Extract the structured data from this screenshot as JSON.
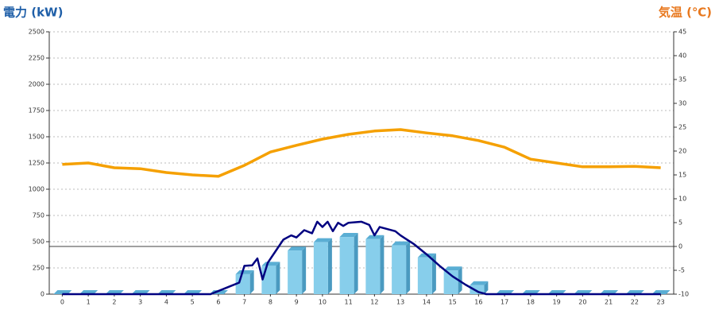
{
  "chart_data": {
    "type": "combo",
    "title_left": "電力 (kW)",
    "title_right": "気温 (℃)",
    "title_left_color": "#1f5fa8",
    "title_right_color": "#e8781e",
    "categories": [
      "0",
      "1",
      "2",
      "3",
      "4",
      "5",
      "6",
      "7",
      "8",
      "9",
      "10",
      "11",
      "12",
      "13",
      "14",
      "15",
      "16",
      "17",
      "18",
      "19",
      "20",
      "21",
      "22",
      "23"
    ],
    "ylim": [
      0,
      2500
    ],
    "yticks": [
      0,
      250,
      500,
      750,
      1000,
      1250,
      1500,
      1750,
      2000,
      2250,
      2500
    ],
    "y2lim": [
      -10,
      45
    ],
    "y2ticks": [
      -10,
      -5,
      0,
      5,
      10,
      15,
      20,
      25,
      30,
      35,
      40,
      45
    ],
    "xlim": [
      -0.5,
      23.5
    ],
    "grid": true,
    "series": [
      {
        "type": "bar",
        "color": "#87ceeb",
        "values": [
          0,
          0,
          0,
          0,
          0,
          0,
          0,
          190,
          270,
          415,
          495,
          545,
          525,
          465,
          350,
          225,
          85,
          0,
          0,
          0,
          0,
          0,
          0,
          0
        ]
      },
      {
        "type": "line",
        "color": "#000080",
        "x": [
          0,
          1,
          2,
          3,
          4,
          5,
          5.7,
          6,
          6.5,
          6.8,
          7,
          7.3,
          7.5,
          7.7,
          7.9,
          8.2,
          8.5,
          8.8,
          9,
          9.3,
          9.6,
          9.8,
          10,
          10.2,
          10.4,
          10.6,
          10.8,
          11,
          11.5,
          11.8,
          12,
          12.2,
          12.5,
          12.8,
          13,
          13.5,
          14,
          14.5,
          15,
          15.5,
          16,
          16.3,
          17,
          18,
          19,
          20,
          21,
          22,
          23
        ],
        "values": [
          0,
          0,
          0,
          0,
          0,
          0,
          0,
          30,
          80,
          110,
          270,
          275,
          340,
          140,
          300,
          410,
          520,
          560,
          540,
          610,
          580,
          690,
          640,
          690,
          600,
          680,
          650,
          680,
          690,
          660,
          560,
          640,
          620,
          600,
          560,
          480,
          380,
          270,
          170,
          90,
          20,
          0,
          0,
          0,
          0,
          0,
          0,
          0,
          0
        ]
      },
      {
        "type": "line",
        "axis": "y2",
        "color": "#f5a000",
        "values": [
          17.2,
          17.5,
          16.5,
          16.3,
          15.5,
          15,
          14.7,
          17,
          19.8,
          21.2,
          22.5,
          23.5,
          24.2,
          24.5,
          23.8,
          23.2,
          22.2,
          20.8,
          18.3,
          17.5,
          16.7,
          16.7,
          16.8,
          16.5
        ]
      }
    ]
  }
}
